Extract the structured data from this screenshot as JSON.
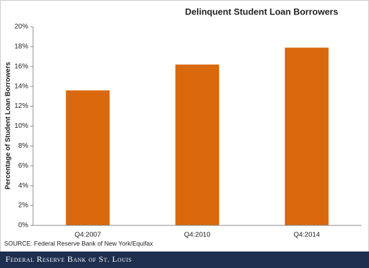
{
  "chart_data": {
    "type": "bar",
    "title": "Delinquent Student Loan Borrowers",
    "y_label": "Percentage of Student Loan Borrowers",
    "categories": [
      "Q4:2007",
      "Q4:2010",
      "Q4:2014"
    ],
    "values": [
      13.6,
      16.2,
      17.9
    ],
    "color": "#d9690c",
    "ylim": [
      0,
      20
    ],
    "yticks": [
      {
        "value": 0,
        "label": "0%"
      },
      {
        "value": 2,
        "label": "2%"
      },
      {
        "value": 4,
        "label": "4%"
      },
      {
        "value": 6,
        "label": "6%"
      },
      {
        "value": 8,
        "label": "8%"
      },
      {
        "value": 10,
        "label": "10%"
      },
      {
        "value": 12,
        "label": "12%"
      },
      {
        "value": 14,
        "label": "14%"
      },
      {
        "value": 16,
        "label": "16%"
      },
      {
        "value": 18,
        "label": "18%"
      },
      {
        "value": 20,
        "label": "20%"
      }
    ],
    "grid": false,
    "source": "SOURCE: Federal Reserve Bank of New York/Equifax"
  },
  "footer": "Federal Reserve Bank of St. Louis"
}
